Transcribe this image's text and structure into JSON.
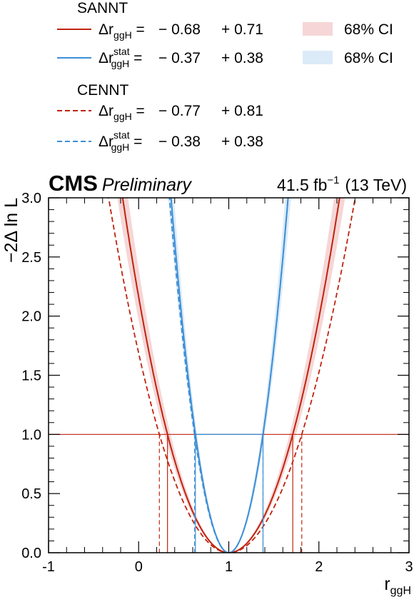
{
  "chart_data": {
    "type": "line",
    "xlabel": "r",
    "xlabel_sub": "ggH",
    "ylabel": "−2Δ ln L",
    "xlim": [
      -1,
      3
    ],
    "ylim": [
      0,
      3
    ],
    "x_ticks": [
      -1,
      0,
      1,
      2,
      3
    ],
    "x_tick_labels": [
      "-1",
      "0",
      "1",
      "2",
      "3"
    ],
    "y_ticks": [
      0,
      0.5,
      1,
      1.5,
      2,
      2.5,
      3
    ],
    "y_tick_labels": [
      "0.0",
      "0.5",
      "1.0",
      "1.5",
      "2.0",
      "2.5",
      "3.0"
    ],
    "reference_line_y": 1.0,
    "experiment": "CMS",
    "status": "Preliminary",
    "lumi_value": "41.5 fb",
    "lumi_sup": "−1",
    "energy": "(13 TeV)",
    "colors": {
      "sannt": "#c0230f",
      "cennt": "#c0230f",
      "stat": "#3d8fd6",
      "band_total": "#f6d6d6",
      "band_stat": "#dcebf8"
    },
    "legend": {
      "groups": [
        {
          "title": "SANNT",
          "entries": [
            {
              "kind": "total",
              "style": "solid",
              "color": "#c0230f",
              "sym": "Δr",
              "sub": "ggH",
              "sup": "",
              "down": "− 0.68",
              "up": "+ 0.71"
            },
            {
              "kind": "stat",
              "style": "solid",
              "color": "#3d8fd6",
              "sym": "Δr",
              "sub": "ggH",
              "sup": "stat",
              "down": "− 0.37",
              "up": "+ 0.38"
            }
          ]
        },
        {
          "title": "CENNT",
          "entries": [
            {
              "kind": "total",
              "style": "dashed",
              "color": "#c0230f",
              "sym": "Δr",
              "sub": "ggH",
              "sup": "",
              "down": "− 0.77",
              "up": "+ 0.81"
            },
            {
              "kind": "stat",
              "style": "dashed",
              "color": "#3d8fd6",
              "sym": "Δr",
              "sub": "ggH",
              "sup": "stat",
              "down": "− 0.38",
              "up": "+ 0.38"
            }
          ]
        }
      ],
      "ci_entries": [
        {
          "label": "68% CI",
          "color": "#f6d6d6"
        },
        {
          "label": "68% CI",
          "color": "#dcebf8"
        }
      ]
    },
    "series": [
      {
        "name": "SANNT total",
        "best_fit": 1.0,
        "down": 0.68,
        "up": 0.71,
        "style": "solid",
        "color": "#c0230f",
        "band": true
      },
      {
        "name": "SANNT stat",
        "best_fit": 1.0,
        "down": 0.37,
        "up": 0.38,
        "style": "solid",
        "color": "#3d8fd6",
        "band": true
      },
      {
        "name": "CENNT total",
        "best_fit": 1.0,
        "down": 0.77,
        "up": 0.81,
        "style": "dashed",
        "color": "#c0230f",
        "band": false
      },
      {
        "name": "CENNT stat",
        "best_fit": 1.0,
        "down": 0.38,
        "up": 0.38,
        "style": "dashed",
        "color": "#3d8fd6",
        "band": false
      }
    ]
  }
}
